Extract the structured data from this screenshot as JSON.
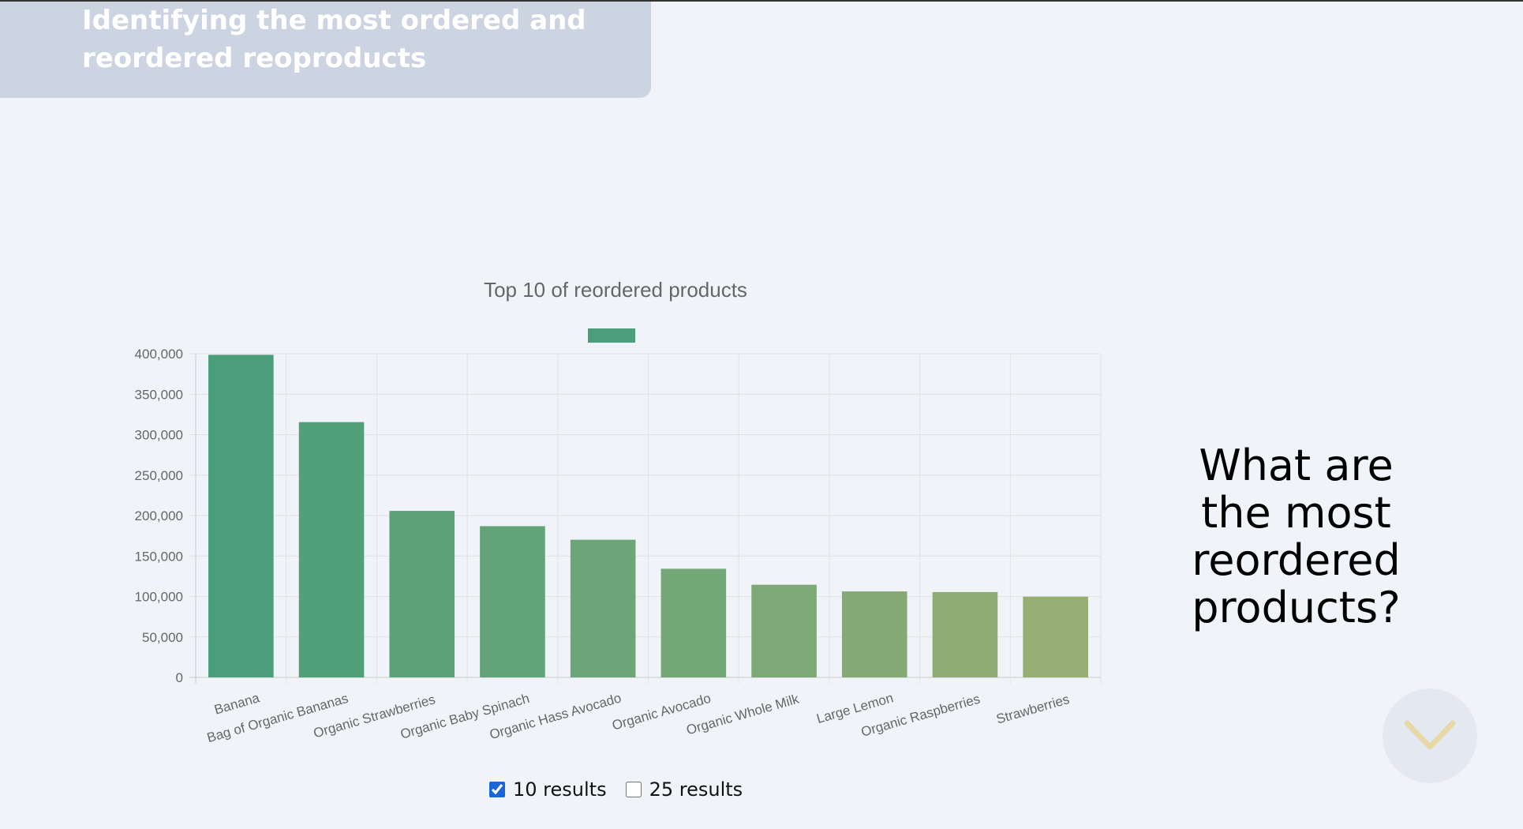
{
  "header": {
    "title": "Identifying the most ordered and reordered reoproducts"
  },
  "question": "What are the most reordered products?",
  "controls": {
    "option_10": {
      "label": "10 results",
      "checked": true
    },
    "option_25": {
      "label": "25 results",
      "checked": false
    }
  },
  "icons": {
    "scroll": "chevron-down-icon"
  },
  "colors": {
    "bar_start": "#4a9e7a",
    "bar_end": "#96ae74",
    "chevron": "#e8d8a6"
  },
  "chart_data": {
    "type": "bar",
    "title": "Top 10 of reordered products",
    "categories": [
      "Banana",
      "Bag of Organic Bananas",
      "Organic Strawberries",
      "Organic Baby Spinach",
      "Organic Hass Avocado",
      "Organic Avocado",
      "Organic Whole Milk",
      "Large Lemon",
      "Organic Raspberries",
      "Strawberries"
    ],
    "values": [
      398600,
      315500,
      205800,
      186900,
      170100,
      134300,
      114500,
      106300,
      105500,
      99800
    ],
    "ylim": [
      0,
      400000
    ],
    "yticks": [
      "0",
      "50,000",
      "100,000",
      "150,000",
      "200,000",
      "250,000",
      "300,000",
      "350,000",
      "400,000"
    ],
    "grid": true,
    "legend": "top"
  }
}
